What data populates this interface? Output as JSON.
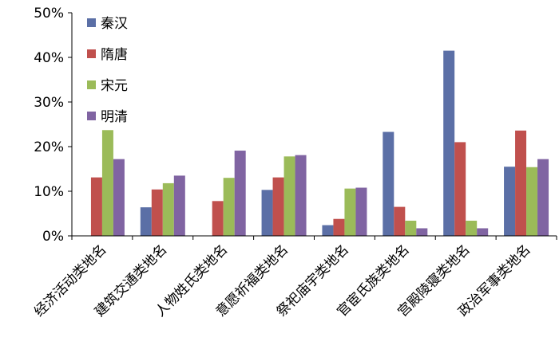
{
  "chart_data": {
    "type": "bar",
    "categories": [
      "经济活动类地名",
      "建筑交通类地名",
      "人物姓氏类地名",
      "意愿祈福类地名",
      "祭祀庙宇类地名",
      "官宦氏族类地名",
      "宫殿陵寝类地名",
      "政治军事类地名"
    ],
    "series": [
      {
        "name": "秦汉",
        "color": "#5b6fa6",
        "values": [
          0,
          6.4,
          0,
          10.3,
          2.4,
          23.3,
          41.5,
          15.5
        ]
      },
      {
        "name": "隋唐",
        "color": "#c0504d",
        "values": [
          13.1,
          10.4,
          7.8,
          13.1,
          3.8,
          6.5,
          21.0,
          23.6
        ]
      },
      {
        "name": "宋元",
        "color": "#9bbb59",
        "values": [
          23.7,
          11.8,
          13.0,
          17.8,
          10.6,
          3.4,
          3.4,
          15.4
        ]
      },
      {
        "name": "明清",
        "color": "#8064a2",
        "values": [
          17.2,
          13.5,
          19.1,
          18.1,
          10.8,
          1.7,
          1.7,
          17.2
        ]
      }
    ],
    "yticks": [
      "0%",
      "10%",
      "20%",
      "30%",
      "40%",
      "50%"
    ],
    "ylim": [
      0,
      50
    ],
    "legend_position": "top-left inside",
    "grid": false
  }
}
